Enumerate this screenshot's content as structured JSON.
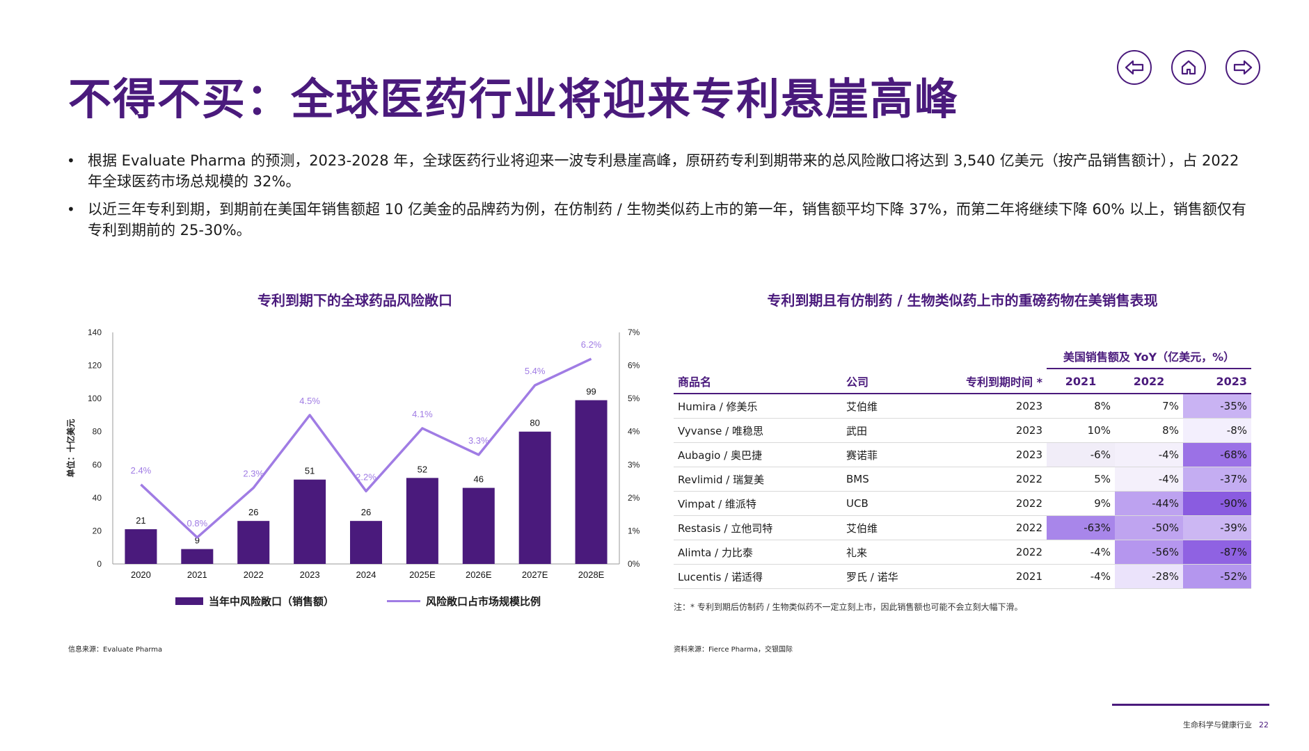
{
  "title": "不得不买：全球医药行业将迎来专利悬崖高峰",
  "nav": {
    "back_icon": "arrow-left-icon",
    "home_icon": "home-icon",
    "next_icon": "arrow-right-icon"
  },
  "bullets": [
    "根据 Evaluate Pharma 的预测，2023-2028 年，全球医药行业将迎来一波专利悬崖高峰，原研药专利到期带来的总风险敞口将达到 3,540 亿美元（按产品销售额计），占 2022 年全球医药市场总规模的 32%。",
    "以近三年专利到期，到期前在美国年销售额超 10 亿美金的品牌药为例，在仿制药 / 生物类似药上市的第一年，销售额平均下降 37%，而第二年将继续下降 60% 以上，销售额仅有专利到期前的 25-30%。"
  ],
  "chart_data": {
    "type": "bar",
    "title": "专利到期下的全球药品风险敞口",
    "categories": [
      "2020",
      "2021",
      "2022",
      "2023",
      "2024",
      "2025E",
      "2026E",
      "2027E",
      "2028E"
    ],
    "series": [
      {
        "name": "当年中风险敞口（销售额）",
        "type": "bar",
        "values": [
          21,
          9,
          26,
          51,
          26,
          52,
          46,
          80,
          99
        ],
        "color": "#4a1a7c"
      },
      {
        "name": "风险敞口占市场规模比例",
        "type": "line",
        "values": [
          2.4,
          0.8,
          2.3,
          4.5,
          2.2,
          4.1,
          3.3,
          5.4,
          6.2
        ],
        "labels": [
          "2.4%",
          "0.8%",
          "2.3%",
          "4.5%",
          "2.2%",
          "4.1%",
          "3.3%",
          "5.4%",
          "6.2%"
        ],
        "color": "#a07ce4"
      }
    ],
    "ylabel": "单位：十亿美元",
    "ylim": [
      0,
      140
    ],
    "yticks": [
      0,
      20,
      40,
      60,
      80,
      100,
      120,
      140
    ],
    "y2lim": [
      0,
      7
    ],
    "y2ticks": [
      "0%",
      "1%",
      "2%",
      "3%",
      "4%",
      "5%",
      "6%",
      "7%"
    ],
    "grid": false,
    "legend": "bottom"
  },
  "left_source": "信息来源：Evaluate Pharma",
  "table": {
    "title": "专利到期且有仿制药 / 生物类似药上市的重磅药物在美销售表现",
    "group_header": "美国销售额及 YoY（亿美元，%）",
    "columns": [
      "商品名",
      "公司",
      "专利到期时间 *",
      "2021",
      "2022",
      "2023"
    ],
    "rows": [
      {
        "name": "Humira / 修美乐",
        "company": "艾伯维",
        "year": "2023",
        "v2021": "8%",
        "v2022": "7%",
        "v2023": "-35%"
      },
      {
        "name": "Vyvanse / 唯稳思",
        "company": "武田",
        "year": "2023",
        "v2021": "10%",
        "v2022": "8%",
        "v2023": "-8%"
      },
      {
        "name": "Aubagio / 奥巴捷",
        "company": "赛诺菲",
        "year": "2023",
        "v2021": "-6%",
        "v2022": "-4%",
        "v2023": "-68%"
      },
      {
        "name": "Revlimid / 瑞复美",
        "company": "BMS",
        "year": "2022",
        "v2021": "5%",
        "v2022": "-4%",
        "v2023": "-37%"
      },
      {
        "name": "Vimpat / 维派特",
        "company": "UCB",
        "year": "2022",
        "v2021": "9%",
        "v2022": "-44%",
        "v2023": "-90%"
      },
      {
        "name": "Restasis / 立他司特",
        "company": "艾伯维",
        "year": "2022",
        "v2021": "-63%",
        "v2022": "-50%",
        "v2023": "-39%"
      },
      {
        "name": "Alimta / 力比泰",
        "company": "礼来",
        "year": "2022",
        "v2021": "-4%",
        "v2022": "-56%",
        "v2023": "-87%"
      },
      {
        "name": "Lucentis / 诺适得",
        "company": "罗氏 / 诺华",
        "year": "2021",
        "v2021": "-4%",
        "v2022": "-28%",
        "v2023": "-52%"
      }
    ],
    "note": "注：* 专利到期后仿制药 / 生物类似药不一定立刻上市，因此销售额也可能不会立刻大幅下滑。",
    "source": "资料来源：Fierce Pharma，交银国际"
  },
  "footer": {
    "section": "生命科学与健康行业",
    "page": "22"
  },
  "colors": {
    "brand": "#4a1a7c",
    "line": "#a07ce4",
    "heat_strong": "#9b71e6",
    "heat_mid": "#c9b3f3",
    "heat_light": "#ebe3fb"
  }
}
